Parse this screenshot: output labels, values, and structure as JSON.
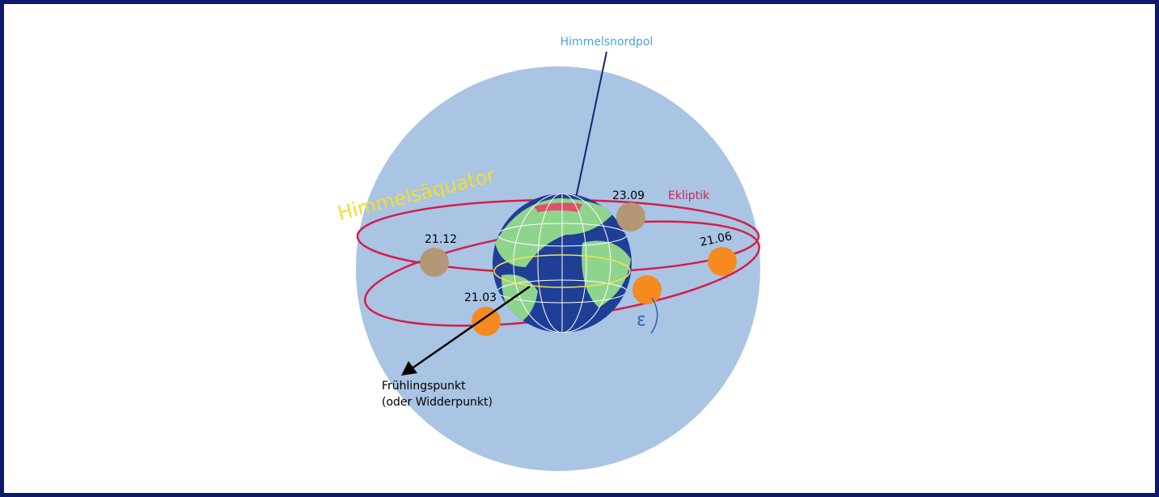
{
  "labels": {
    "pole": "Himmelsnordpol",
    "equator": "Himmelsäquator",
    "ecliptic": "Ekliptik",
    "epsilon": "ε",
    "vernal_point": [
      "Frühlingspunkt",
      "(oder Widderpunkt)"
    ]
  },
  "dates": [
    "21.12",
    "23.09",
    "21.06",
    "21.03"
  ]
}
